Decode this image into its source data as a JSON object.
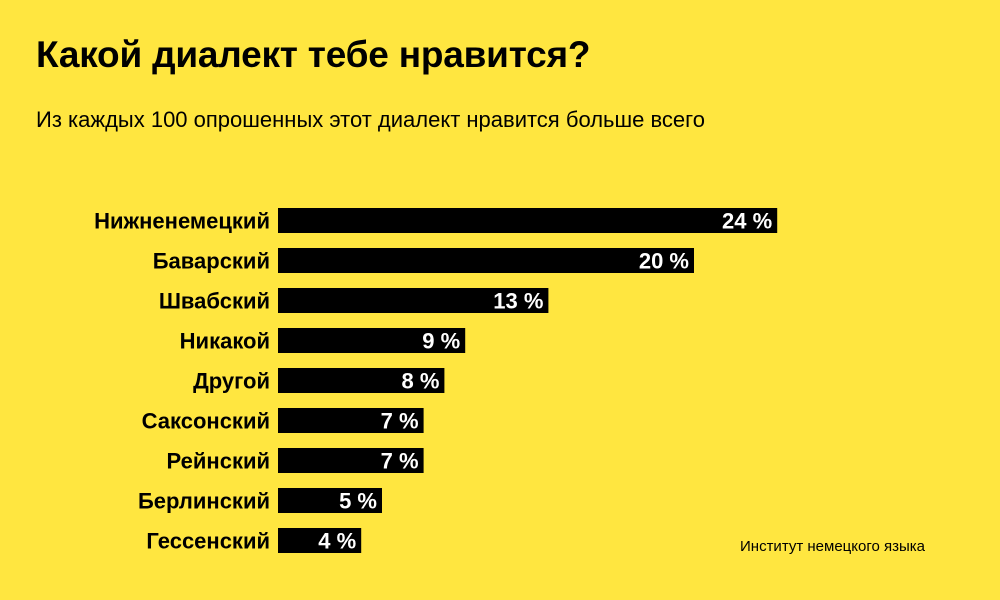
{
  "title": "Какой диалект тебе нравится?",
  "subtitle": "Из каждых 100 опрошенных этот диалект нравится больше всего",
  "source": "Институт немецкого языка",
  "colors": {
    "background": "#ffe640",
    "bar": "#000000",
    "bar_label": "#ffffff",
    "text": "#000000"
  },
  "chart_data": {
    "type": "bar",
    "orientation": "horizontal",
    "categories": [
      "Нижненемецкий",
      "Баварский",
      "Швабский",
      "Никакой",
      "Другой",
      "Саксонский",
      "Рейнский",
      "Берлинский",
      "Гессенский"
    ],
    "values": [
      24,
      20,
      13,
      9,
      8,
      7,
      7,
      5,
      4
    ],
    "value_labels": [
      "24 %",
      "20 %",
      "13 %",
      "9 %",
      "8 %",
      "7 %",
      "7 %",
      "5 %",
      "4 %"
    ],
    "unit": "%",
    "grid": false,
    "legend": "none"
  }
}
